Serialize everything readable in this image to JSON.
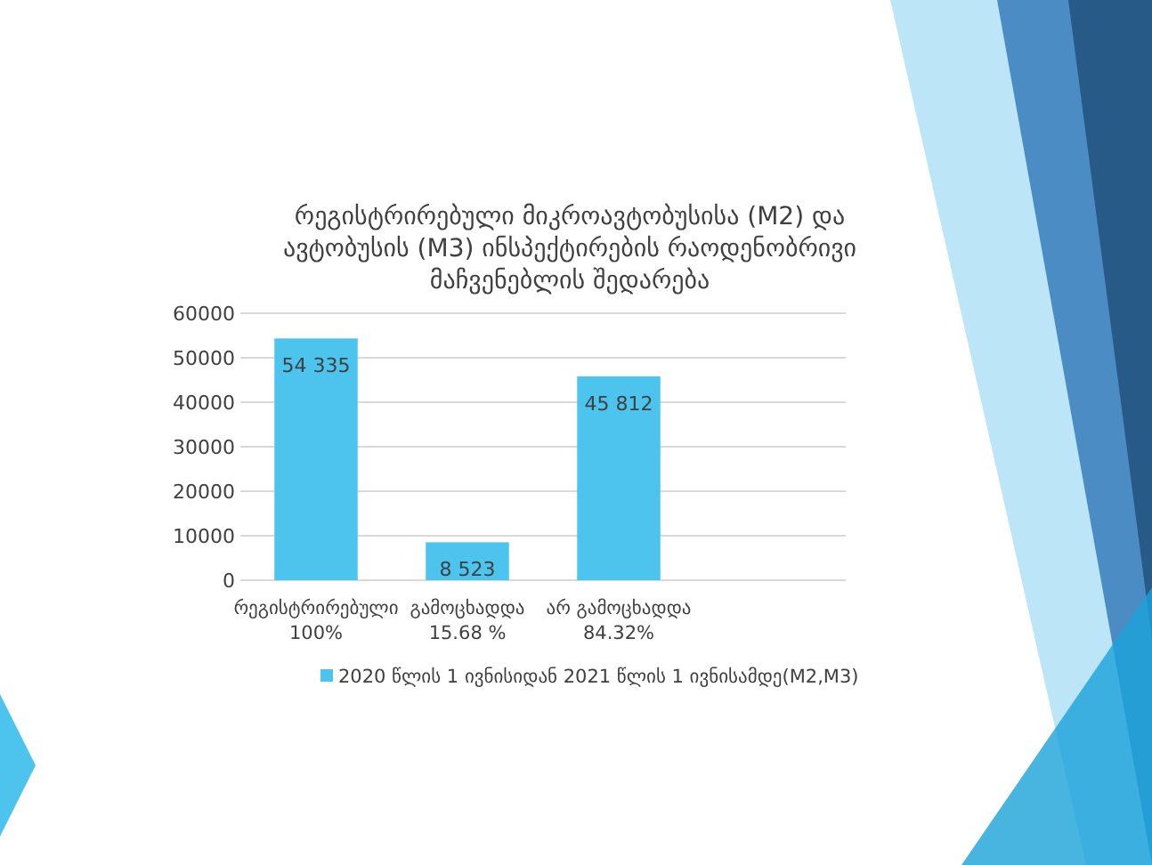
{
  "chart_data": {
    "type": "bar",
    "title": "რეგისტრირებული მიკროავტობუსისა (M2) და\nავტობუსის (M3)  ინსპექტირების  რაოდენობრივი\nმაჩვენებლის შედარება",
    "categories": [
      "რეგისტრირებული\n100%",
      "გამოცხადდა\n15.68 %",
      "არ გამოცხადდა\n84.32%",
      null
    ],
    "series": [
      {
        "name": "2020 წლის 1 ივნისიდან 2021 წლის 1 ივნისამდე(M2,M3)",
        "color": "#4cc4ee",
        "values": [
          54335,
          8523,
          45812,
          null
        ]
      }
    ],
    "value_labels": [
      "54 335",
      "8 523",
      "45 812",
      null
    ],
    "ylim": [
      0,
      60000
    ],
    "yticks": [
      0,
      10000,
      20000,
      30000,
      40000,
      50000,
      60000
    ],
    "grid": "y",
    "legend": "bottom"
  }
}
